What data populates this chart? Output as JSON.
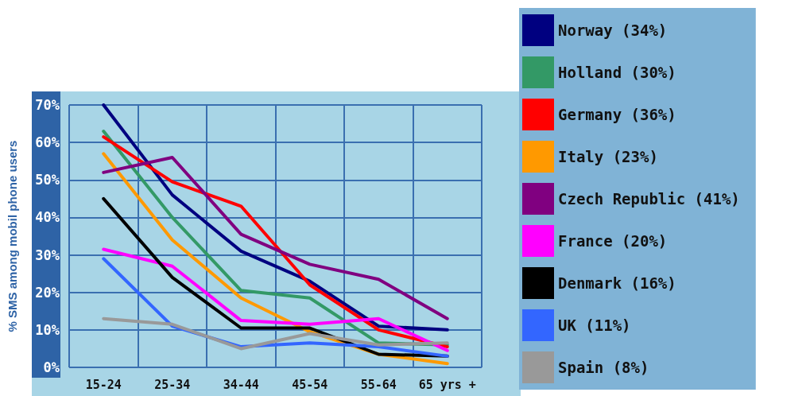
{
  "chart_data": {
    "type": "line",
    "ylabel": "% SMS among mobil phone users",
    "categories": [
      "15-24",
      "25-34",
      "34-44",
      "45-54",
      "55-64",
      "65 yrs +"
    ],
    "series": [
      {
        "name": "Norway (34%)",
        "color": "#000080",
        "values": [
          70,
          46,
          31,
          23,
          11,
          10
        ]
      },
      {
        "name": "Holland (30%)",
        "color": "#339966",
        "values": [
          63,
          40,
          20.5,
          18.5,
          6.5,
          6
        ]
      },
      {
        "name": "Germany (36%)",
        "color": "#ff0000",
        "values": [
          61.5,
          49.5,
          43,
          22,
          10,
          5.5
        ]
      },
      {
        "name": "Italy (23%)",
        "color": "#ff9900",
        "values": [
          57,
          34,
          18.5,
          9.5,
          3.5,
          1
        ]
      },
      {
        "name": "Czech Republic (41%)",
        "color": "#800080",
        "values": [
          52,
          56,
          35.5,
          27.5,
          23.5,
          13
        ]
      },
      {
        "name": "France (20%)",
        "color": "#ff00ff",
        "values": [
          31.5,
          27,
          12.5,
          11.5,
          13,
          4.5
        ]
      },
      {
        "name": "Denmark (16%)",
        "color": "#000000",
        "values": [
          45,
          24,
          10.5,
          10.5,
          3.5,
          3
        ]
      },
      {
        "name": "UK (11%)",
        "color": "#3366ff",
        "values": [
          29,
          11,
          5.5,
          6.5,
          5.5,
          3
        ]
      },
      {
        "name": "Spain (8%)",
        "color": "#999999",
        "values": [
          13,
          11.5,
          5,
          9,
          6,
          6.5
        ]
      }
    ],
    "ylim": [
      0,
      70
    ],
    "yticks": [
      {
        "value": 0,
        "label": "0%"
      },
      {
        "value": 10,
        "label": "10%"
      },
      {
        "value": 20,
        "label": "20%"
      },
      {
        "value": 30,
        "label": "30%"
      },
      {
        "value": 40,
        "label": "40%"
      },
      {
        "value": 50,
        "label": "50%"
      },
      {
        "value": 60,
        "label": "60%"
      },
      {
        "value": 70,
        "label": "70%"
      }
    ],
    "grid": true,
    "legend": "right",
    "marker": "none",
    "line_style": "solid"
  }
}
